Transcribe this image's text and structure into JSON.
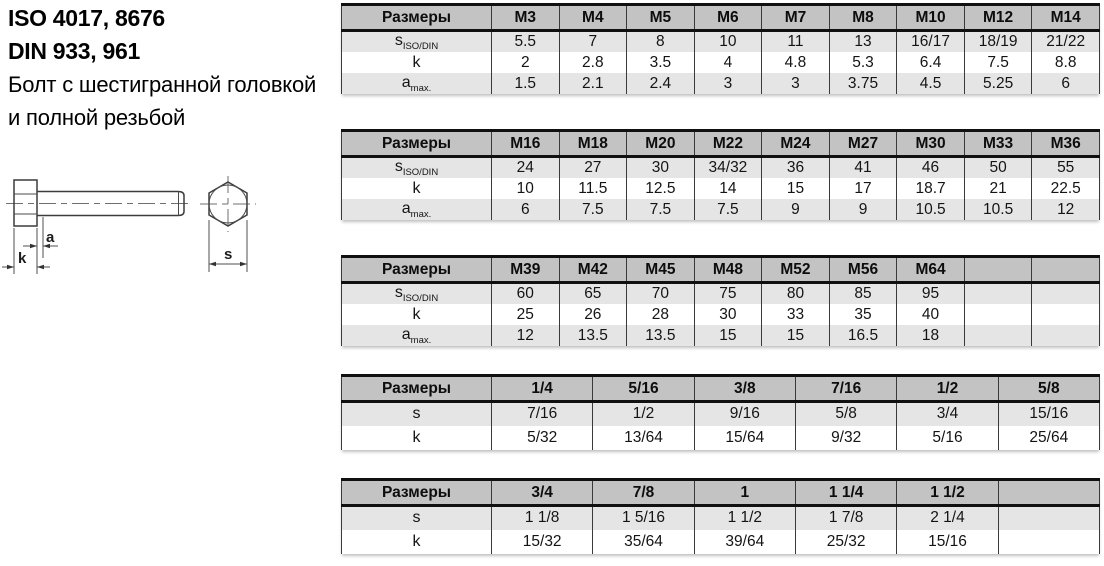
{
  "title": {
    "line1": "ISO 4017, 8676",
    "line2": "DIN 933, 961",
    "line3": "Болт с шестигранной головкой",
    "line4": "и полной резьбой"
  },
  "diagram": {
    "label_a": "a",
    "label_k": "k",
    "label_s": "s"
  },
  "colors": {
    "header_bg": "#c3c3c3",
    "shaded_row": "#e5e5e5",
    "table_border": "#101010",
    "grid_line": "#3a3a3a"
  },
  "tables": [
    {
      "header_label": "Размеры",
      "columns": [
        "M3",
        "M4",
        "M5",
        "M6",
        "M7",
        "M8",
        "M10",
        "M12",
        "M14"
      ],
      "rows": [
        {
          "label_base": "s",
          "label_sub": "ISO/DIN",
          "values": [
            "5.5",
            "7",
            "8",
            "10",
            "11",
            "13",
            "16/17",
            "18/19",
            "21/22"
          ]
        },
        {
          "label_base": "k",
          "label_sub": "",
          "values": [
            "2",
            "2.8",
            "3.5",
            "4",
            "4.8",
            "5.3",
            "6.4",
            "7.5",
            "8.8"
          ]
        },
        {
          "label_base": "a",
          "label_sub": "max.",
          "values": [
            "1.5",
            "2.1",
            "2.4",
            "3",
            "3",
            "3.75",
            "4.5",
            "5.25",
            "6"
          ]
        }
      ]
    },
    {
      "header_label": "Размеры",
      "columns": [
        "M16",
        "M18",
        "M20",
        "M22",
        "M24",
        "M27",
        "M30",
        "M33",
        "M36"
      ],
      "rows": [
        {
          "label_base": "s",
          "label_sub": "ISO/DIN",
          "values": [
            "24",
            "27",
            "30",
            "34/32",
            "36",
            "41",
            "46",
            "50",
            "55"
          ]
        },
        {
          "label_base": "k",
          "label_sub": "",
          "values": [
            "10",
            "11.5",
            "12.5",
            "14",
            "15",
            "17",
            "18.7",
            "21",
            "22.5"
          ]
        },
        {
          "label_base": "a",
          "label_sub": "max.",
          "values": [
            "6",
            "7.5",
            "7.5",
            "7.5",
            "9",
            "9",
            "10.5",
            "10.5",
            "12"
          ]
        }
      ]
    },
    {
      "header_label": "Размеры",
      "columns": [
        "M39",
        "M42",
        "M45",
        "M48",
        "M52",
        "M56",
        "M64",
        "",
        ""
      ],
      "rows": [
        {
          "label_base": "s",
          "label_sub": "ISO/DIN",
          "values": [
            "60",
            "65",
            "70",
            "75",
            "80",
            "85",
            "95",
            "",
            ""
          ]
        },
        {
          "label_base": "k",
          "label_sub": "",
          "values": [
            "25",
            "26",
            "28",
            "30",
            "33",
            "35",
            "40",
            "",
            ""
          ]
        },
        {
          "label_base": "a",
          "label_sub": "max.",
          "values": [
            "12",
            "13.5",
            "13.5",
            "15",
            "15",
            "16.5",
            "18",
            "",
            ""
          ]
        }
      ]
    },
    {
      "header_label": "Размеры",
      "columns": [
        "1/4",
        "5/16",
        "3/8",
        "7/16",
        "1/2",
        "5/8"
      ],
      "rows": [
        {
          "label_base": "s",
          "label_sub": "",
          "values": [
            "7/16",
            "1/2",
            "9/16",
            "5/8",
            "3/4",
            "15/16"
          ]
        },
        {
          "label_base": "k",
          "label_sub": "",
          "values": [
            "5/32",
            "13/64",
            "15/64",
            "9/32",
            "5/16",
            "25/64"
          ]
        }
      ]
    },
    {
      "header_label": "Размеры",
      "columns": [
        "3/4",
        "7/8",
        "1",
        "1 1/4",
        "1 1/2",
        ""
      ],
      "rows": [
        {
          "label_base": "s",
          "label_sub": "",
          "values": [
            "1 1/8",
            "1 5/16",
            "1 1/2",
            "1 7/8",
            "2 1/4",
            ""
          ]
        },
        {
          "label_base": "k",
          "label_sub": "",
          "values": [
            "15/32",
            "35/64",
            "39/64",
            "25/32",
            "15/16",
            ""
          ]
        }
      ]
    }
  ]
}
